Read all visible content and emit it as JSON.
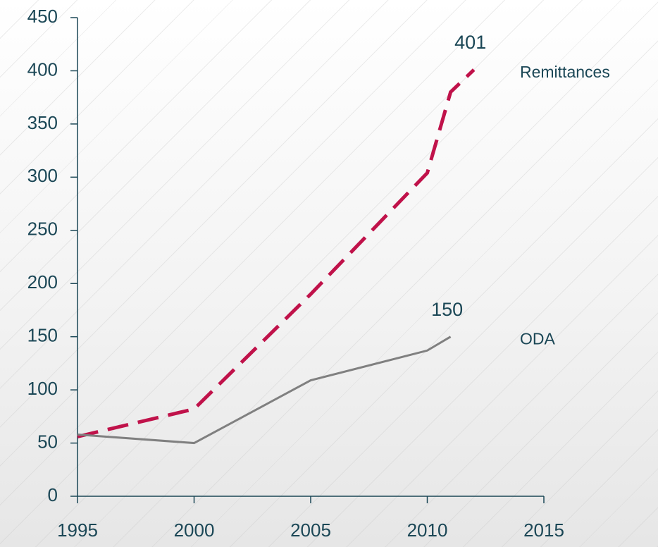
{
  "chart_data": {
    "type": "line",
    "xlim": [
      1995,
      2015
    ],
    "xticks": [
      1995,
      2000,
      2005,
      2010,
      2015
    ],
    "ylim": [
      0,
      450
    ],
    "yticks": [
      0,
      50,
      100,
      150,
      200,
      250,
      300,
      350,
      400,
      450
    ],
    "series": [
      {
        "name": "Remittances",
        "color": "#c0124a",
        "dash": true,
        "x": [
          1995,
          2000,
          2005,
          2010,
          2011,
          2012
        ],
        "values": [
          56,
          82,
          190,
          304,
          380,
          401
        ]
      },
      {
        "name": "ODA",
        "color": "#808080",
        "dash": false,
        "x": [
          1995,
          2000,
          2005,
          2010,
          2011
        ],
        "values": [
          58,
          50,
          109,
          137,
          150
        ]
      }
    ]
  }
}
